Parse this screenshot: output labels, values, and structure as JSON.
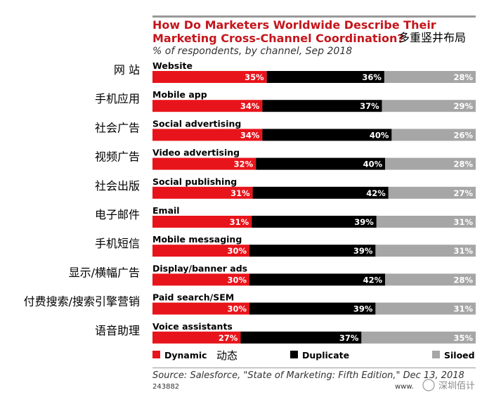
{
  "chart_data": {
    "type": "bar",
    "stacked": true,
    "normalized": true,
    "title": "How Do Marketers Worldwide Describe Their Marketing Cross-Channel Coordination?",
    "title_lines": [
      "How Do Marketers Worldwide Describe Their",
      "Marketing Cross-Channel Coordination?"
    ],
    "title_annotation_zh": "多重竖井布局",
    "subtitle": "% of respondents, by channel, Sep 2018",
    "categories": [
      "Website",
      "Mobile app",
      "Social advertising",
      "Video advertising",
      "Social publishing",
      "Email",
      "Mobile messaging",
      "Display/banner ads",
      "Paid search/SEM",
      "Voice assistants"
    ],
    "categories_zh": [
      "网 站",
      "手机应用",
      "社会广告",
      "视频广告",
      "社会出版",
      "电子邮件",
      "手机短信",
      "显示/横幅广告",
      "付费搜索/搜索引擎营销",
      "语音助理"
    ],
    "series": [
      {
        "name": "Dynamic",
        "name_zh": "动态",
        "color": "#e8141b",
        "values": [
          35,
          34,
          34,
          32,
          31,
          31,
          30,
          30,
          30,
          27
        ]
      },
      {
        "name": "Duplicate",
        "color": "#000000",
        "values": [
          36,
          37,
          40,
          40,
          42,
          39,
          39,
          42,
          39,
          37
        ]
      },
      {
        "name": "Siloed",
        "color": "#a6a6a6",
        "values": [
          28,
          29,
          26,
          28,
          27,
          31,
          31,
          28,
          31,
          35
        ]
      }
    ],
    "legend_position": "bottom",
    "grid": false
  },
  "footer": {
    "source": "Source: Salesforce, \"State of Marketing: Fifth Edition,\" Dec 13, 2018",
    "chart_id": "243882",
    "logo_left": "www.",
    "watermark": "深圳佰计"
  }
}
